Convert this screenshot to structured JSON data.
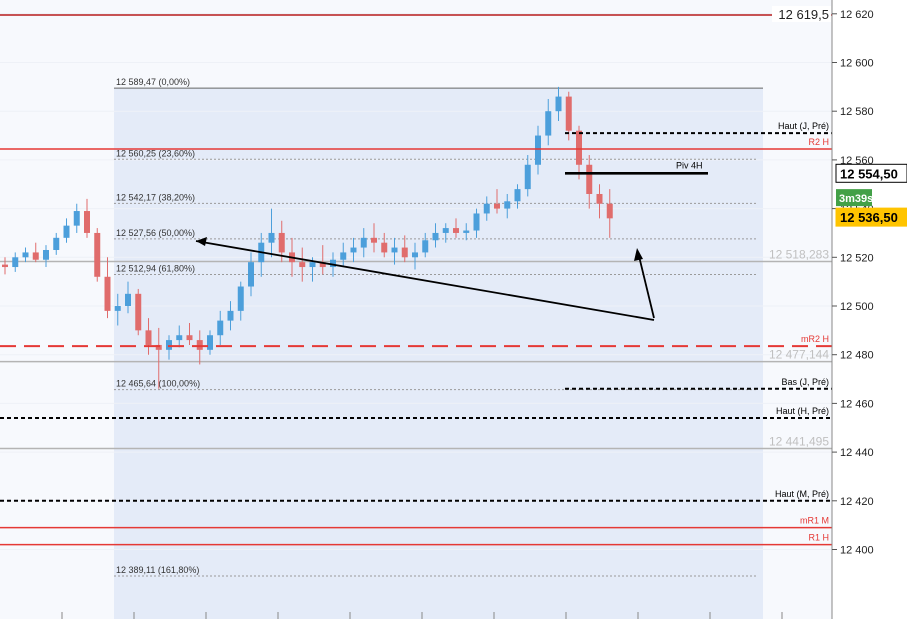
{
  "chart_data": {
    "type": "candlestick",
    "y_axis": {
      "range": [
        12381,
        12623
      ],
      "ticks": [
        12400,
        12420,
        12440,
        12460,
        12480,
        12500,
        12520,
        12540,
        12560,
        12580,
        12600,
        12620
      ],
      "tick_labels": [
        "12 400",
        "12 420",
        "12 440",
        "12 460",
        "12 480",
        "12 500",
        "12 520",
        "12 540",
        "12 560",
        "12 580",
        "12 600",
        "12 620"
      ]
    },
    "candles": [
      {
        "o": 12517,
        "h": 12520,
        "l": 12513,
        "c": 12516
      },
      {
        "o": 12516,
        "h": 12522,
        "l": 12514,
        "c": 12520
      },
      {
        "o": 12520,
        "h": 12524,
        "l": 12518,
        "c": 12522
      },
      {
        "o": 12522,
        "h": 12526,
        "l": 12518,
        "c": 12519
      },
      {
        "o": 12519,
        "h": 12525,
        "l": 12516,
        "c": 12523
      },
      {
        "o": 12523,
        "h": 12530,
        "l": 12521,
        "c": 12528
      },
      {
        "o": 12528,
        "h": 12536,
        "l": 12526,
        "c": 12533
      },
      {
        "o": 12533,
        "h": 12542,
        "l": 12530,
        "c": 12539
      },
      {
        "o": 12539,
        "h": 12544,
        "l": 12528,
        "c": 12530
      },
      {
        "o": 12530,
        "h": 12532,
        "l": 12510,
        "c": 12512
      },
      {
        "o": 12512,
        "h": 12520,
        "l": 12495,
        "c": 12498
      },
      {
        "o": 12498,
        "h": 12505,
        "l": 12492,
        "c": 12500
      },
      {
        "o": 12500,
        "h": 12510,
        "l": 12497,
        "c": 12505
      },
      {
        "o": 12505,
        "h": 12507,
        "l": 12488,
        "c": 12490
      },
      {
        "o": 12490,
        "h": 12495,
        "l": 12480,
        "c": 12484
      },
      {
        "o": 12484,
        "h": 12491,
        "l": 12466,
        "c": 12482
      },
      {
        "o": 12482,
        "h": 12488,
        "l": 12478,
        "c": 12486
      },
      {
        "o": 12486,
        "h": 12492,
        "l": 12483,
        "c": 12488
      },
      {
        "o": 12488,
        "h": 12493,
        "l": 12484,
        "c": 12486
      },
      {
        "o": 12486,
        "h": 12490,
        "l": 12476,
        "c": 12482
      },
      {
        "o": 12482,
        "h": 12490,
        "l": 12480,
        "c": 12488
      },
      {
        "o": 12488,
        "h": 12498,
        "l": 12484,
        "c": 12494
      },
      {
        "o": 12494,
        "h": 12502,
        "l": 12490,
        "c": 12498
      },
      {
        "o": 12498,
        "h": 12510,
        "l": 12494,
        "c": 12508
      },
      {
        "o": 12508,
        "h": 12522,
        "l": 12504,
        "c": 12518
      },
      {
        "o": 12518,
        "h": 12530,
        "l": 12512,
        "c": 12526
      },
      {
        "o": 12526,
        "h": 12540,
        "l": 12520,
        "c": 12530
      },
      {
        "o": 12530,
        "h": 12535,
        "l": 12518,
        "c": 12522
      },
      {
        "o": 12522,
        "h": 12528,
        "l": 12512,
        "c": 12518
      },
      {
        "o": 12518,
        "h": 12524,
        "l": 12510,
        "c": 12516
      },
      {
        "o": 12516,
        "h": 12520,
        "l": 12510,
        "c": 12518
      },
      {
        "o": 12518,
        "h": 12525,
        "l": 12513,
        "c": 12516
      },
      {
        "o": 12516,
        "h": 12522,
        "l": 12512,
        "c": 12519
      },
      {
        "o": 12519,
        "h": 12526,
        "l": 12516,
        "c": 12522
      },
      {
        "o": 12522,
        "h": 12528,
        "l": 12518,
        "c": 12524
      },
      {
        "o": 12524,
        "h": 12532,
        "l": 12520,
        "c": 12528
      },
      {
        "o": 12528,
        "h": 12534,
        "l": 12522,
        "c": 12526
      },
      {
        "o": 12526,
        "h": 12530,
        "l": 12520,
        "c": 12522
      },
      {
        "o": 12522,
        "h": 12528,
        "l": 12517,
        "c": 12524
      },
      {
        "o": 12524,
        "h": 12529,
        "l": 12518,
        "c": 12520
      },
      {
        "o": 12520,
        "h": 12526,
        "l": 12515,
        "c": 12522
      },
      {
        "o": 12522,
        "h": 12530,
        "l": 12520,
        "c": 12527
      },
      {
        "o": 12527,
        "h": 12534,
        "l": 12524,
        "c": 12530
      },
      {
        "o": 12530,
        "h": 12534,
        "l": 12526,
        "c": 12532
      },
      {
        "o": 12532,
        "h": 12536,
        "l": 12528,
        "c": 12530
      },
      {
        "o": 12530,
        "h": 12534,
        "l": 12527,
        "c": 12531
      },
      {
        "o": 12531,
        "h": 12540,
        "l": 12528,
        "c": 12538
      },
      {
        "o": 12538,
        "h": 12545,
        "l": 12535,
        "c": 12542
      },
      {
        "o": 12542,
        "h": 12548,
        "l": 12538,
        "c": 12540
      },
      {
        "o": 12540,
        "h": 12546,
        "l": 12536,
        "c": 12543
      },
      {
        "o": 12543,
        "h": 12550,
        "l": 12540,
        "c": 12548
      },
      {
        "o": 12548,
        "h": 12562,
        "l": 12545,
        "c": 12558
      },
      {
        "o": 12558,
        "h": 12574,
        "l": 12554,
        "c": 12570
      },
      {
        "o": 12570,
        "h": 12585,
        "l": 12566,
        "c": 12580
      },
      {
        "o": 12580,
        "h": 12590,
        "l": 12576,
        "c": 12586
      },
      {
        "o": 12586,
        "h": 12588,
        "l": 12568,
        "c": 12572
      },
      {
        "o": 12572,
        "h": 12574,
        "l": 12552,
        "c": 12558
      },
      {
        "o": 12558,
        "h": 12562,
        "l": 12540,
        "c": 12546
      },
      {
        "o": 12546,
        "h": 12550,
        "l": 12536,
        "c": 12542
      },
      {
        "o": 12542,
        "h": 12548,
        "l": 12528,
        "c": 12536
      }
    ],
    "fibonacci": [
      {
        "label": "12 589,47 (0,00%)",
        "value": 12589.47
      },
      {
        "label": "12 560,25 (23,60%)",
        "value": 12560.25
      },
      {
        "label": "12 542,17 (38,20%)",
        "value": 12542.17
      },
      {
        "label": "12 527,56 (50,00%)",
        "value": 12527.56
      },
      {
        "label": "12 512,94 (61,80%)",
        "value": 12512.94
      },
      {
        "label": "12 465,64 (100,00%)",
        "value": 12465.64
      },
      {
        "label": "12 389,11 (161,80%)",
        "value": 12389.11
      }
    ],
    "levels": [
      {
        "label": "12 619,5",
        "value": 12619.5,
        "color": "#b71c1c",
        "style": "solid"
      },
      {
        "label": "Haut (J, Pré)",
        "value": 12571,
        "color": "#000000",
        "style": "dashed"
      },
      {
        "label": "R2 H",
        "value": 12564.5,
        "color": "#e53935",
        "style": "solid"
      },
      {
        "label": "Piv 4H",
        "value": 12554.5,
        "color": "#000000",
        "style": "thick"
      },
      {
        "label": "mR2 H",
        "value": 12483.5,
        "color": "#e53935",
        "style": "longdash"
      },
      {
        "label": "Bas (J, Pré)",
        "value": 12466,
        "color": "#000000",
        "style": "dashed"
      },
      {
        "label": "Haut (H, Pré)",
        "value": 12454,
        "color": "#000000",
        "style": "dashed"
      },
      {
        "label": "Haut (M, Pré)",
        "value": 12420,
        "color": "#000000",
        "style": "dashed"
      },
      {
        "label": "mR1 M",
        "value": 12409,
        "color": "#e53935",
        "style": "solid"
      },
      {
        "label": "R1 H",
        "value": 12402,
        "color": "#e53935",
        "style": "solid"
      }
    ],
    "gray_levels": [
      {
        "label": "12 518,283",
        "value": 12518.283
      },
      {
        "label": "12 477,144",
        "value": 12477.144
      },
      {
        "label": "12 441,495",
        "value": 12441.495
      }
    ],
    "price_boxes": [
      {
        "label": "12 554,50",
        "value": 12554.5,
        "bg": "#ffffff",
        "border": "#000000",
        "fg": "#000000"
      },
      {
        "label": "12 536,50",
        "value": 12536.5,
        "bg": "#ffc400",
        "border": "#ffc400",
        "fg": "#000000"
      }
    ],
    "countdown": {
      "label": "3m39s",
      "bg": "#43a047",
      "fg": "#ffffff"
    },
    "colors": {
      "up": "#4c9fdb",
      "down": "#e06c6c",
      "fib_region": "#e4ebf8"
    }
  }
}
